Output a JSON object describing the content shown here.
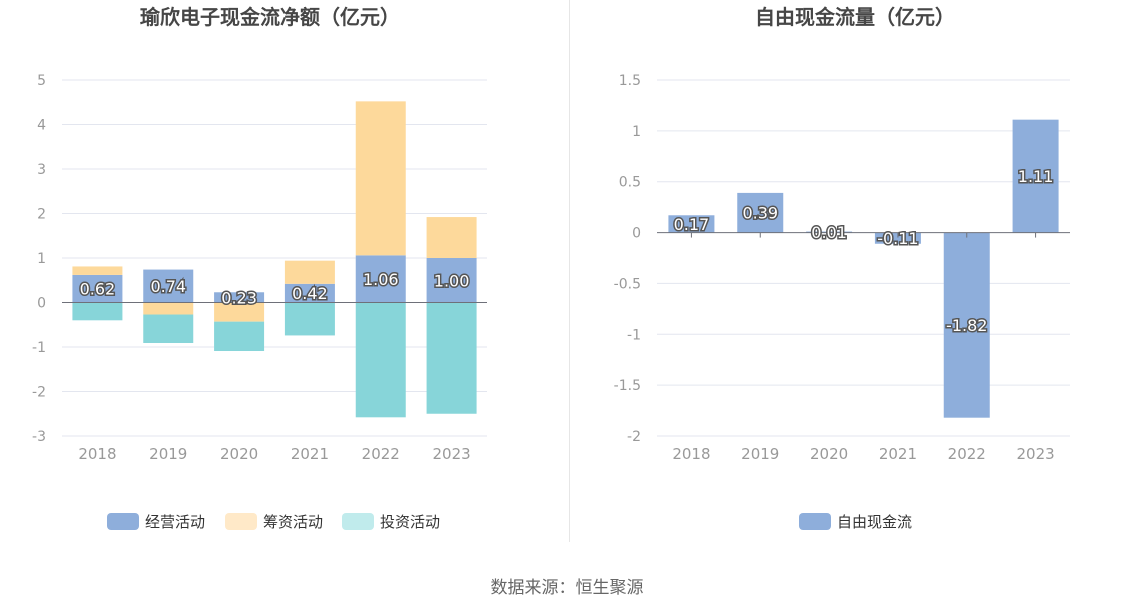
{
  "footer": {
    "source": "数据来源：恒生聚源"
  },
  "colors": {
    "operating": "#8eaedb",
    "financing": "#fdd99b",
    "investing": "#87d5d9",
    "free_cash": "#8eaedb"
  },
  "chart_data": [
    {
      "type": "bar",
      "stacked": true,
      "title": "瑜欣电子现金流净额（亿元）",
      "xlabel": "",
      "ylabel": "",
      "categories": [
        "2018",
        "2019",
        "2020",
        "2021",
        "2022",
        "2023"
      ],
      "ylim": [
        -3,
        5
      ],
      "yticks": [
        "5",
        "4",
        "3",
        "2",
        "1",
        "0",
        "-1",
        "-2",
        "-3"
      ],
      "ytick_values": [
        5,
        4,
        3,
        2,
        1,
        0,
        -1,
        -2,
        -3
      ],
      "grid": true,
      "legend_position": "bottom",
      "series": [
        {
          "name": "经营活动",
          "color": "#8eaedb",
          "values": [
            0.62,
            0.74,
            0.23,
            0.42,
            1.06,
            1.0
          ],
          "labels": [
            "0.62",
            "0.74",
            "0.23",
            "0.42",
            "1.06",
            "1.00"
          ]
        },
        {
          "name": "筹资活动",
          "color": "#fdd99b",
          "values": [
            0.19,
            -0.27,
            -0.43,
            0.52,
            3.46,
            0.92
          ]
        },
        {
          "name": "投资活动",
          "color": "#87d5d9",
          "values": [
            -0.4,
            -0.64,
            -0.66,
            -0.74,
            -2.58,
            -2.5
          ]
        }
      ],
      "legend": [
        {
          "name": "经营活动",
          "color": "#8eaedb"
        },
        {
          "name": "筹资活动",
          "color": "#ffe9c8"
        },
        {
          "name": "投资活动",
          "color": "#c0ebec"
        }
      ]
    },
    {
      "type": "bar",
      "title": "自由现金流量（亿元）",
      "xlabel": "",
      "ylabel": "",
      "categories": [
        "2018",
        "2019",
        "2020",
        "2021",
        "2022",
        "2023"
      ],
      "ylim": [
        -2,
        1.5
      ],
      "yticks": [
        "1.5",
        "1",
        "0.5",
        "0",
        "-0.5",
        "-1",
        "-1.5",
        "-2"
      ],
      "ytick_values": [
        1.5,
        1,
        0.5,
        0,
        -0.5,
        -1,
        -1.5,
        -2
      ],
      "grid": true,
      "legend_position": "bottom",
      "series": [
        {
          "name": "自由现金流",
          "color": "#8eaedb",
          "values": [
            0.17,
            0.39,
            0.01,
            -0.11,
            -1.82,
            1.11
          ],
          "labels": [
            "0.17",
            "0.39",
            "0.01",
            "-0.11",
            "-1.82",
            "1.11"
          ]
        }
      ],
      "legend": [
        {
          "name": "自由现金流",
          "color": "#8eaedb"
        }
      ]
    }
  ]
}
